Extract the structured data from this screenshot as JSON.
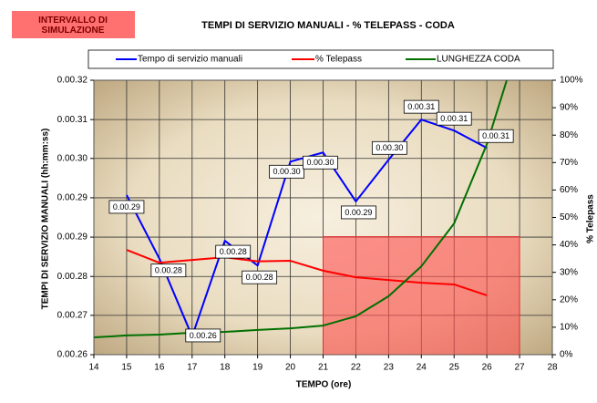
{
  "chart_data": {
    "type": "line",
    "title": "TEMPI DI SERVIZIO MANUALI - % TELEPASS - CODA",
    "annotation": "INTERVALLO DI SIMULAZIONE",
    "xlabel": "TEMPO (ore)",
    "ylabel": "TEMPI DI SERVIZIO MANUALI (hh:mm:ss)",
    "y2label": "% Telepass",
    "xlim": [
      14,
      28
    ],
    "xticks": [
      14,
      15,
      16,
      17,
      18,
      19,
      20,
      21,
      22,
      23,
      24,
      25,
      26,
      27,
      28
    ],
    "ylim": [
      26,
      32
    ],
    "yticks": [
      {
        "value": 26,
        "label": "0.00.26"
      },
      {
        "value": 26.86,
        "label": "0.00.27"
      },
      {
        "value": 27.71,
        "label": "0.00.28"
      },
      {
        "value": 28.57,
        "label": "0.00.29"
      },
      {
        "value": 29.43,
        "label": "0.00.29"
      },
      {
        "value": 30.29,
        "label": "0.00.30"
      },
      {
        "value": 31.14,
        "label": "0.00.31"
      },
      {
        "value": 32,
        "label": "0.00.32"
      }
    ],
    "y2lim": [
      0,
      100
    ],
    "y2ticks": [
      {
        "value": 0,
        "label": "0%"
      },
      {
        "value": 10,
        "label": "10%"
      },
      {
        "value": 20,
        "label": "20%"
      },
      {
        "value": 30,
        "label": "30%"
      },
      {
        "value": 40,
        "label": "40%"
      },
      {
        "value": 50,
        "label": "50%"
      },
      {
        "value": 60,
        "label": "60%"
      },
      {
        "value": 70,
        "label": "70%"
      },
      {
        "value": 80,
        "label": "80%"
      },
      {
        "value": 90,
        "label": "90%"
      },
      {
        "value": 100,
        "label": "100%"
      }
    ],
    "grid": true,
    "shaded_region": {
      "x": [
        21,
        27
      ],
      "y2": [
        0,
        43
      ],
      "color": "#ff5050"
    },
    "series": [
      {
        "name": "Tempo di servizio manuali",
        "color": "#0000ff",
        "x": [
          15,
          16,
          17,
          18,
          19,
          20,
          21,
          22,
          23,
          24,
          25,
          26
        ],
        "values": [
          29.49,
          28.1,
          26.4,
          28.49,
          27.95,
          30.22,
          30.42,
          29.35,
          30.26,
          31.14,
          30.9,
          30.52
        ],
        "value_labels": [
          "0.00.29",
          "0.00.28",
          "0.00.26",
          "0.00.28",
          "0.00.28",
          "0.00.30",
          "0.00.30",
          "0.00.29",
          "0.00.30",
          "0.00.31",
          "0.00.31",
          "0.00.31"
        ]
      },
      {
        "name": "% Telepass",
        "color": "#ff0000",
        "axis": "y2",
        "x": [
          15,
          16,
          17,
          18,
          19,
          20,
          21,
          22,
          23,
          24,
          25,
          26
        ],
        "values": [
          38.2,
          33.5,
          34.5,
          35.5,
          34,
          34.2,
          30.6,
          28.2,
          27.2,
          26.2,
          25.6,
          21.6
        ]
      },
      {
        "name": "LUNGHEZZA CODA",
        "color": "#007000",
        "axis": "y2",
        "x": [
          14,
          15,
          16,
          17,
          18,
          19,
          20,
          21,
          22,
          23,
          24,
          25,
          26,
          27
        ],
        "values": [
          6.3,
          7,
          7.3,
          8,
          8.3,
          9,
          9.6,
          10.6,
          14,
          21.3,
          32.2,
          47.8,
          76.7,
          115
        ]
      }
    ]
  }
}
